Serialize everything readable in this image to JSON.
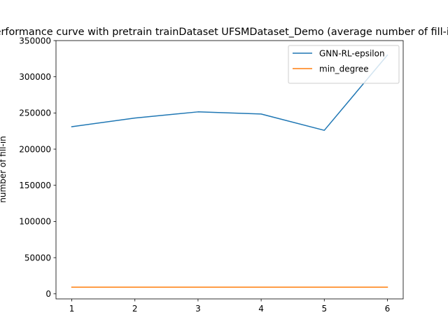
{
  "chart_data": {
    "type": "line",
    "title": "performance curve with pretrain trainDataset UFSMDataset_Demo (average number of fill-in)",
    "xlabel": "",
    "ylabel": "number of fill-in",
    "x": [
      1,
      2,
      3,
      4,
      5,
      6
    ],
    "xlim": [
      0.75,
      6.25
    ],
    "ylim": [
      -7000,
      350000
    ],
    "xticks": [
      1,
      2,
      3,
      4,
      5,
      6
    ],
    "yticks": [
      0,
      50000,
      100000,
      150000,
      200000,
      250000,
      300000,
      350000
    ],
    "grid": false,
    "legend_position": "top-right",
    "series": [
      {
        "name": "GNN-RL-epsilon",
        "color": "#1f77b4",
        "values": [
          231000,
          243000,
          251500,
          248500,
          226000,
          330000
        ]
      },
      {
        "name": "min_degree",
        "color": "#ff7f0e",
        "values": [
          9200,
          9200,
          9200,
          9200,
          9200,
          9200
        ]
      }
    ]
  }
}
